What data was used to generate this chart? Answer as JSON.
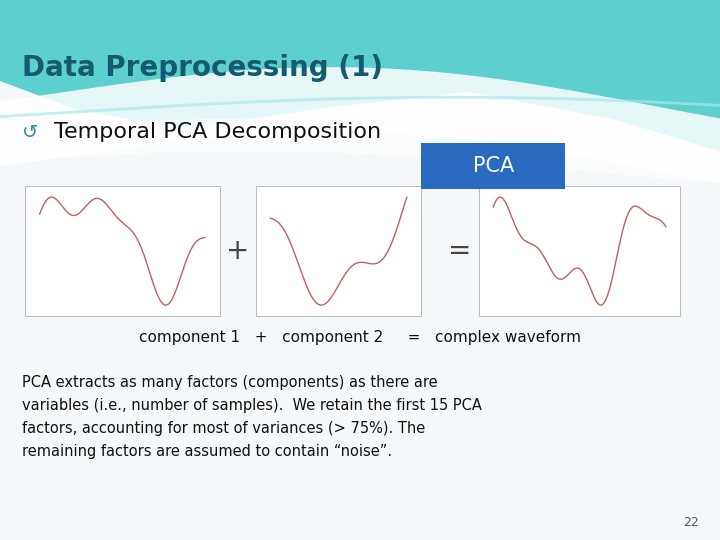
{
  "title": "Data Preprocessing (1)",
  "subtitle": "Temporal PCA Decomposition",
  "pca_label": "PCA",
  "equation_text": "component 1   +   component 2     =   complex waveform",
  "body_text": "PCA extracts as many factors (components) as there are\nvariables (i.e., number of samples).  We retain the first 15 PCA\nfactors, accounting for most of variances (> 75%). The\nremaining factors are assumed to contain “noise”.",
  "page_number": "22",
  "bg_color": "#f5f8fa",
  "title_color": "#145a72",
  "subtitle_color": "#111111",
  "pca_box_color": "#2b6bbf",
  "pca_text_color": "#ffffff",
  "waveform_color": "#c06060",
  "operator_color": "#444444",
  "box_bg": "#ffffff",
  "box_border": "#cccccc",
  "body_text_color": "#111111",
  "page_color": "#555555",
  "teal_wave_color": "#5ecfcf",
  "white_wave_color": "#ffffff"
}
